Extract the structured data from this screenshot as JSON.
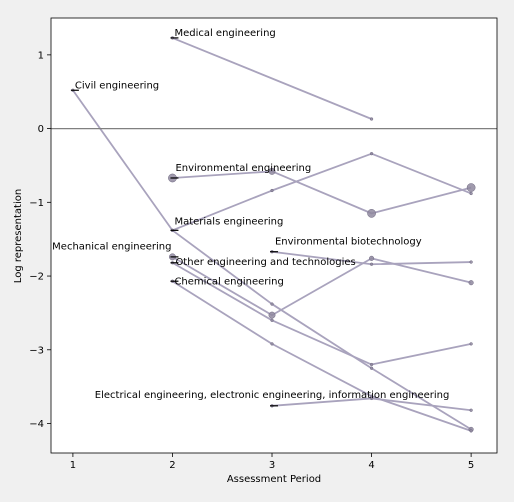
{
  "chart_data": {
    "type": "line",
    "title": "",
    "xlabel": "Assessment Period",
    "ylabel": "Log representation",
    "xlim": [
      0.78,
      5.26
    ],
    "ylim": [
      -4.4,
      1.5
    ],
    "x_ticks": [
      1,
      2,
      3,
      4,
      5
    ],
    "y_ticks": [
      1,
      0,
      -1,
      -2,
      -3,
      -4
    ],
    "x_tick_labels": [
      "1",
      "2",
      "3",
      "4",
      "5"
    ],
    "y_tick_labels": [
      "1",
      "0",
      "−1",
      "−2",
      "−3",
      "−4"
    ],
    "reference_line_y": 0,
    "grid": false,
    "line_color": "#a9a3bd",
    "marker_color": "#8f889f",
    "series": [
      {
        "name": "Medical engineering",
        "x": [
          2,
          4
        ],
        "y": [
          1.23,
          0.13
        ],
        "sizes": [
          1,
          1
        ]
      },
      {
        "name": "Civil engineering",
        "x": [
          1,
          2,
          3,
          4,
          5
        ],
        "y": [
          0.52,
          -1.38,
          -2.38,
          -3.25,
          -4.08
        ],
        "sizes": [
          1,
          1,
          1,
          1,
          2
        ]
      },
      {
        "name": "Environmental engineering",
        "x": [
          2,
          3,
          4,
          5
        ],
        "y": [
          -0.67,
          -0.58,
          -1.15,
          -0.8
        ],
        "sizes": [
          4,
          3,
          4,
          4
        ]
      },
      {
        "name": "Materials engineering",
        "x": [
          2,
          3,
          4,
          5
        ],
        "y": [
          -1.38,
          -0.84,
          -0.34,
          -0.88
        ],
        "sizes": [
          1,
          1,
          1,
          1
        ]
      },
      {
        "name": "Environmental biotechnology",
        "x": [
          3,
          4,
          5
        ],
        "y": [
          -1.67,
          -1.84,
          -1.81
        ],
        "sizes": [
          1,
          1,
          1
        ]
      },
      {
        "name": "Mechanical engineering",
        "x": [
          2,
          3,
          4,
          5
        ],
        "y": [
          -1.74,
          -2.53,
          -1.76,
          -2.09
        ],
        "sizes": [
          3,
          3,
          2,
          2
        ]
      },
      {
        "name": "Other engineering and technologies",
        "x": [
          2,
          3,
          4,
          5
        ],
        "y": [
          -1.82,
          -2.6,
          -3.2,
          -2.92
        ],
        "sizes": [
          1,
          1,
          1,
          1
        ]
      },
      {
        "name": "Chemical engineering",
        "x": [
          2,
          3,
          4,
          5
        ],
        "y": [
          -2.07,
          -2.92,
          -3.63,
          -4.1
        ],
        "sizes": [
          1,
          1,
          1,
          1
        ]
      },
      {
        "name": "Electrical engineering, electronic engineering, information engineering",
        "x": [
          3,
          4,
          5
        ],
        "y": [
          -3.76,
          -3.66,
          -3.82
        ],
        "sizes": [
          1,
          1,
          1
        ]
      }
    ],
    "annotations": [
      {
        "text": "Medical engineering",
        "x": 2.02,
        "y": 1.23,
        "anchor": "start"
      },
      {
        "text": "Civil engineering",
        "x": 1.02,
        "y": 0.52,
        "anchor": "start"
      },
      {
        "text": "Environmental engineering",
        "x": 2.03,
        "y": -0.6,
        "anchor": "start"
      },
      {
        "text": "Materials engineering",
        "x": 2.02,
        "y": -1.33,
        "anchor": "start"
      },
      {
        "text": "Environmental biotechnology",
        "x": 3.03,
        "y": -1.6,
        "anchor": "start"
      },
      {
        "text": "Mechanical engineering",
        "x": 1.99,
        "y": -1.67,
        "anchor": "end"
      },
      {
        "text": "Other engineering and technologies",
        "x": 2.03,
        "y": -1.88,
        "anchor": "start"
      },
      {
        "text": "Chemical engineering",
        "x": 2.02,
        "y": -2.14,
        "anchor": "start"
      },
      {
        "text": "Electrical engineering, electronic engineering, information engineering",
        "x": 1.22,
        "y": -3.68,
        "anchor": "start"
      }
    ]
  }
}
